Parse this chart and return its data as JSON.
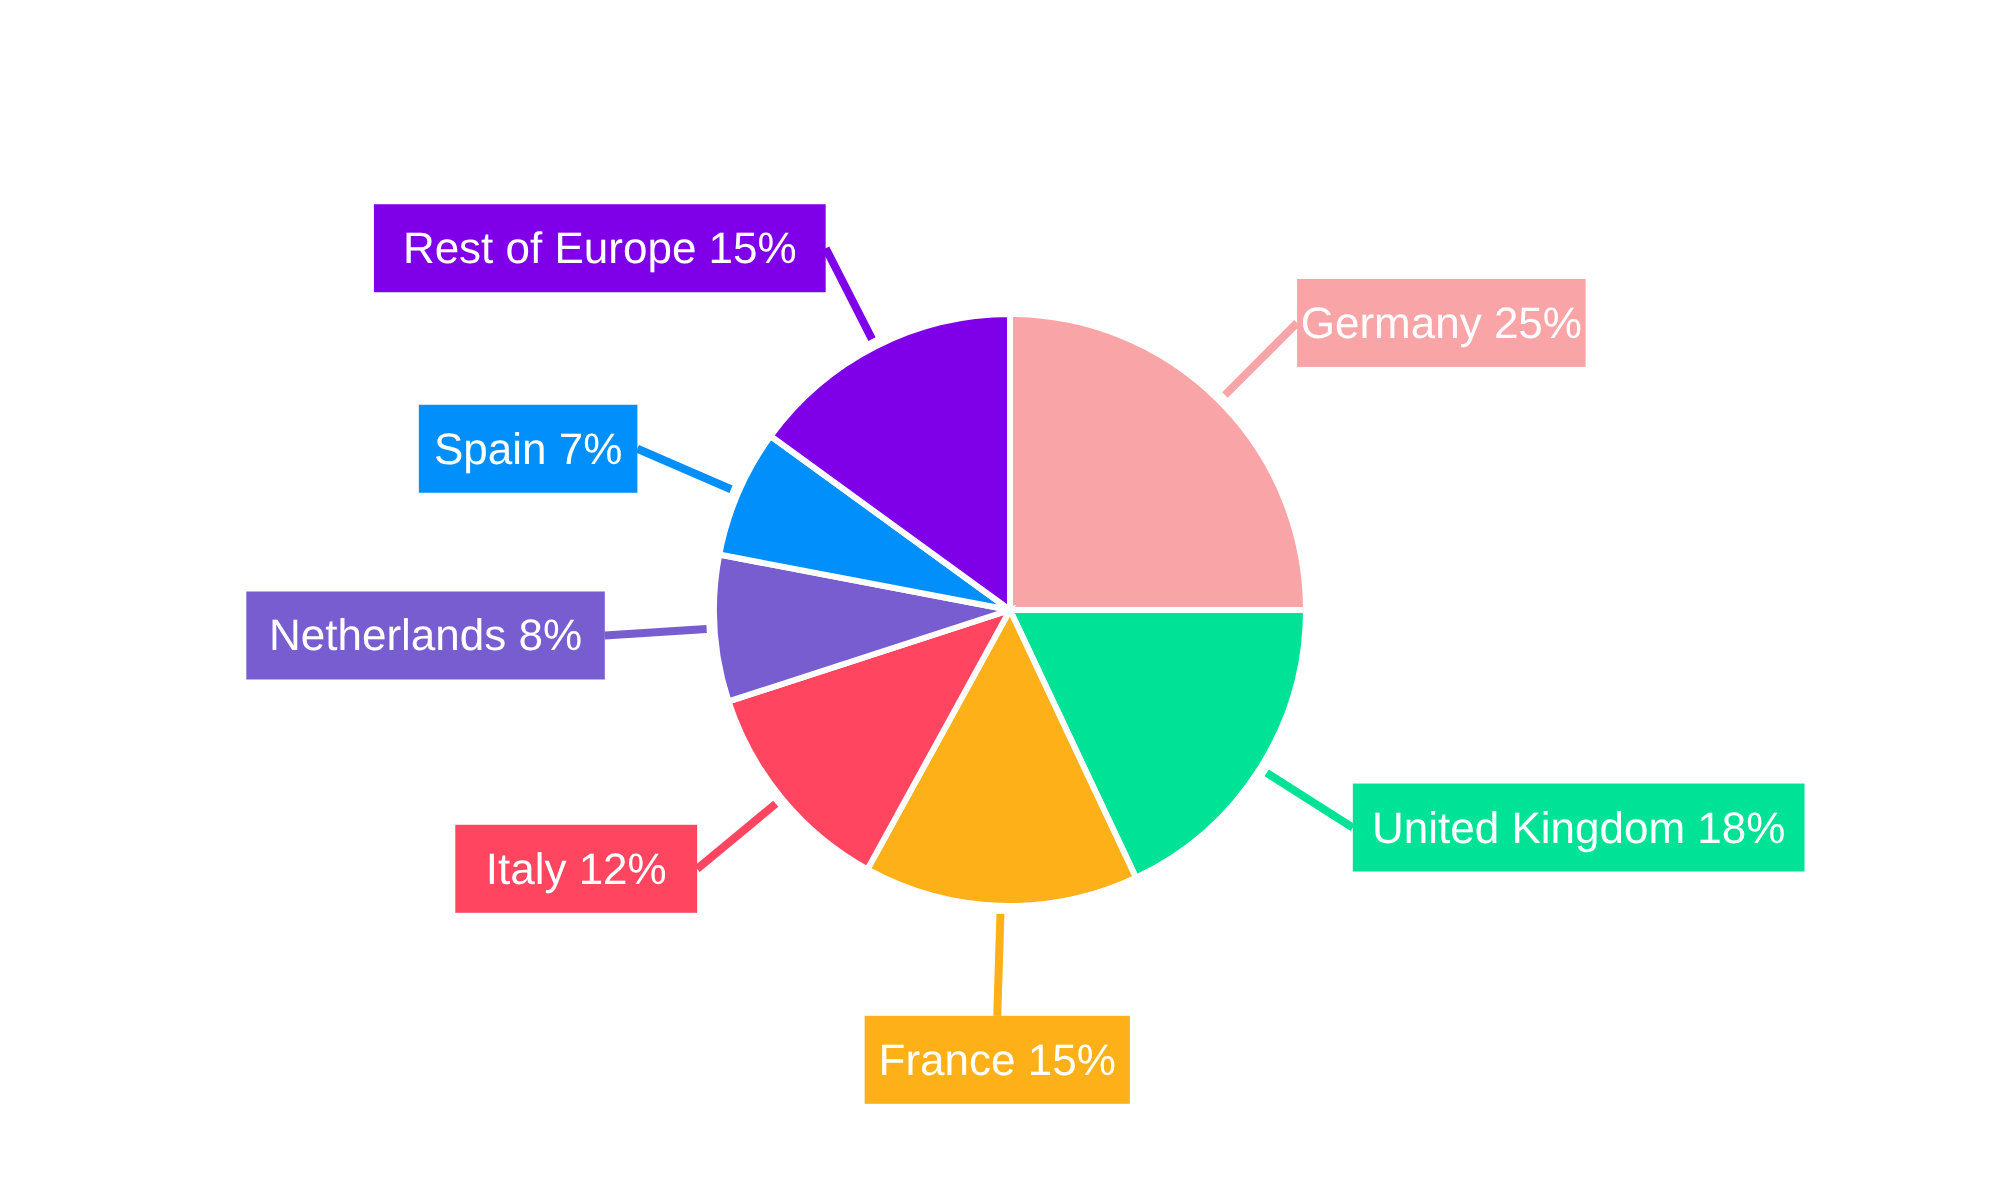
{
  "chart_data": {
    "type": "pie",
    "categories": [
      "Germany",
      "United Kingdom",
      "France",
      "Italy",
      "Netherlands",
      "Spain",
      "Rest of Europe"
    ],
    "values": [
      25,
      18,
      15,
      12,
      8,
      7,
      15
    ],
    "value_labels": [
      "25%",
      "18%",
      "15%",
      "12%",
      "8%",
      "7%",
      "15%"
    ],
    "colors": [
      "#f9a5a7",
      "#00e396",
      "#feb019",
      "#ff4560",
      "#775dd0",
      "#008ffb",
      "#7f00e8"
    ],
    "legend": false
  }
}
